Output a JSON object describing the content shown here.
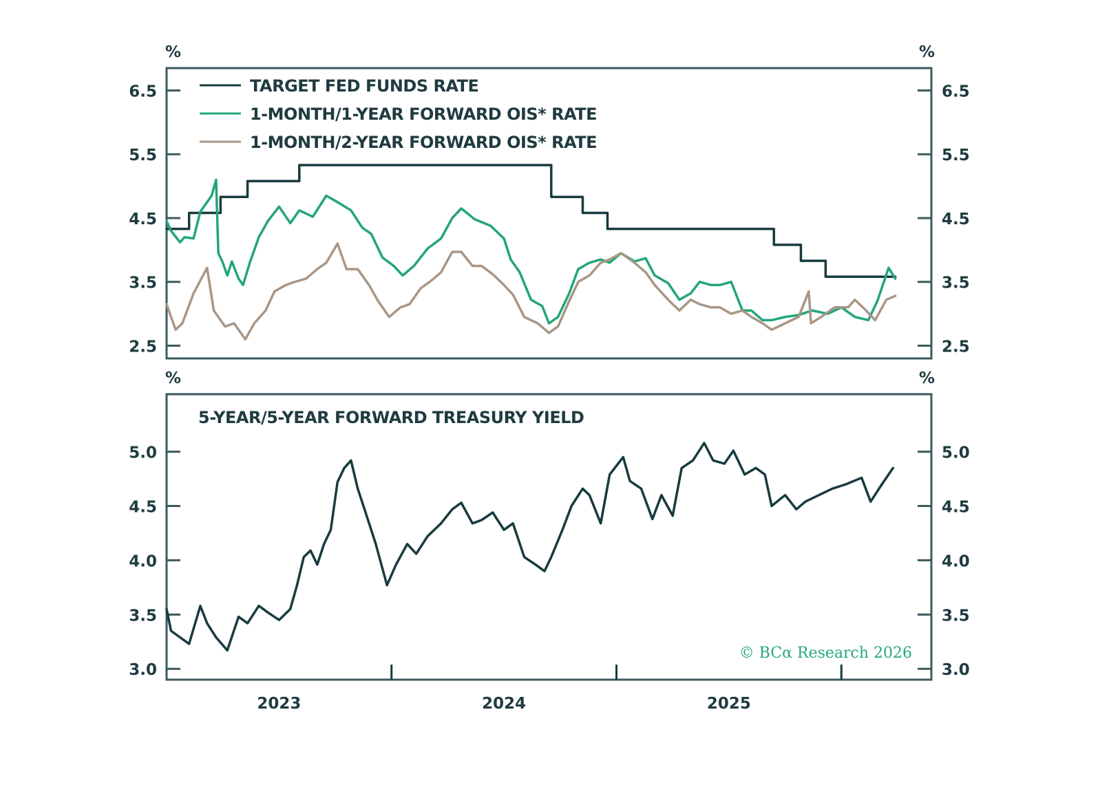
{
  "chart_data": [
    {
      "type": "line",
      "panel": "top",
      "title": "",
      "ylabel_left": "%",
      "ylabel_right": "%",
      "ylim": [
        2.3,
        6.85
      ],
      "yticks": [
        2.5,
        3.5,
        4.5,
        5.5,
        6.5
      ],
      "ytick_labels": [
        "2.5",
        "3.5",
        "4.5",
        "5.5",
        "6.5"
      ],
      "xlim": [
        2023.0,
        2026.4
      ],
      "legend_position": "top-left",
      "series": [
        {
          "name": "TARGET FED FUNDS RATE",
          "color": "#173b3f",
          "step": true,
          "points": [
            [
              2023.0,
              4.33
            ],
            [
              2023.1,
              4.33
            ],
            [
              2023.1,
              4.58
            ],
            [
              2023.24,
              4.58
            ],
            [
              2023.24,
              4.83
            ],
            [
              2023.36,
              4.83
            ],
            [
              2023.36,
              5.08
            ],
            [
              2023.59,
              5.08
            ],
            [
              2023.59,
              5.33
            ],
            [
              2024.71,
              5.33
            ],
            [
              2024.71,
              4.83
            ],
            [
              2024.85,
              4.83
            ],
            [
              2024.85,
              4.58
            ],
            [
              2024.96,
              4.58
            ],
            [
              2024.96,
              4.33
            ],
            [
              2025.7,
              4.33
            ],
            [
              2025.7,
              4.08
            ],
            [
              2025.82,
              4.08
            ],
            [
              2025.82,
              3.83
            ],
            [
              2025.93,
              3.83
            ],
            [
              2025.93,
              3.58
            ],
            [
              2026.24,
              3.58
            ]
          ]
        },
        {
          "name": "1-MONTH/1-YEAR FORWARD OIS* RATE",
          "color": "#22a57a",
          "step": false,
          "points": [
            [
              2023.0,
              4.45
            ],
            [
              2023.02,
              4.3
            ],
            [
              2023.06,
              4.12
            ],
            [
              2023.08,
              4.2
            ],
            [
              2023.12,
              4.18
            ],
            [
              2023.15,
              4.6
            ],
            [
              2023.2,
              4.85
            ],
            [
              2023.22,
              5.1
            ],
            [
              2023.23,
              3.95
            ],
            [
              2023.25,
              3.8
            ],
            [
              2023.27,
              3.6
            ],
            [
              2023.29,
              3.82
            ],
            [
              2023.32,
              3.55
            ],
            [
              2023.34,
              3.45
            ],
            [
              2023.37,
              3.8
            ],
            [
              2023.41,
              4.2
            ],
            [
              2023.45,
              4.45
            ],
            [
              2023.5,
              4.68
            ],
            [
              2023.55,
              4.42
            ],
            [
              2023.59,
              4.62
            ],
            [
              2023.65,
              4.52
            ],
            [
              2023.71,
              4.85
            ],
            [
              2023.76,
              4.75
            ],
            [
              2023.82,
              4.62
            ],
            [
              2023.87,
              4.35
            ],
            [
              2023.91,
              4.25
            ],
            [
              2023.96,
              3.88
            ],
            [
              2024.01,
              3.75
            ],
            [
              2024.05,
              3.6
            ],
            [
              2024.1,
              3.75
            ],
            [
              2024.16,
              4.02
            ],
            [
              2024.22,
              4.18
            ],
            [
              2024.27,
              4.5
            ],
            [
              2024.31,
              4.65
            ],
            [
              2024.37,
              4.48
            ],
            [
              2024.44,
              4.38
            ],
            [
              2024.5,
              4.18
            ],
            [
              2024.53,
              3.85
            ],
            [
              2024.57,
              3.65
            ],
            [
              2024.62,
              3.22
            ],
            [
              2024.67,
              3.12
            ],
            [
              2024.7,
              2.85
            ],
            [
              2024.74,
              2.95
            ],
            [
              2024.79,
              3.32
            ],
            [
              2024.83,
              3.7
            ],
            [
              2024.88,
              3.8
            ],
            [
              2024.93,
              3.85
            ],
            [
              2024.97,
              3.8
            ],
            [
              2025.02,
              3.95
            ],
            [
              2025.08,
              3.82
            ],
            [
              2025.13,
              3.87
            ],
            [
              2025.17,
              3.6
            ],
            [
              2025.23,
              3.48
            ],
            [
              2025.28,
              3.22
            ],
            [
              2025.33,
              3.32
            ],
            [
              2025.37,
              3.5
            ],
            [
              2025.42,
              3.45
            ],
            [
              2025.46,
              3.45
            ],
            [
              2025.51,
              3.5
            ],
            [
              2025.56,
              3.05
            ],
            [
              2025.6,
              3.05
            ],
            [
              2025.65,
              2.9
            ],
            [
              2025.69,
              2.9
            ],
            [
              2025.75,
              2.95
            ],
            [
              2025.81,
              2.98
            ],
            [
              2025.87,
              3.05
            ],
            [
              2025.94,
              3.0
            ],
            [
              2026.0,
              3.1
            ],
            [
              2026.06,
              2.95
            ],
            [
              2026.12,
              2.9
            ],
            [
              2026.16,
              3.2
            ],
            [
              2026.21,
              3.72
            ],
            [
              2026.24,
              3.55
            ]
          ]
        },
        {
          "name": "1-MONTH/2-YEAR FORWARD OIS* RATE",
          "color": "#a99686",
          "step": false,
          "points": [
            [
              2023.0,
              3.15
            ],
            [
              2023.04,
              2.75
            ],
            [
              2023.07,
              2.85
            ],
            [
              2023.12,
              3.32
            ],
            [
              2023.18,
              3.72
            ],
            [
              2023.21,
              3.05
            ],
            [
              2023.26,
              2.8
            ],
            [
              2023.3,
              2.85
            ],
            [
              2023.35,
              2.6
            ],
            [
              2023.39,
              2.85
            ],
            [
              2023.44,
              3.05
            ],
            [
              2023.48,
              3.35
            ],
            [
              2023.53,
              3.45
            ],
            [
              2023.57,
              3.5
            ],
            [
              2023.62,
              3.55
            ],
            [
              2023.67,
              3.7
            ],
            [
              2023.71,
              3.8
            ],
            [
              2023.76,
              4.1
            ],
            [
              2023.8,
              3.7
            ],
            [
              2023.85,
              3.7
            ],
            [
              2023.9,
              3.45
            ],
            [
              2023.94,
              3.2
            ],
            [
              2023.99,
              2.95
            ],
            [
              2024.04,
              3.1
            ],
            [
              2024.08,
              3.15
            ],
            [
              2024.13,
              3.4
            ],
            [
              2024.17,
              3.5
            ],
            [
              2024.22,
              3.65
            ],
            [
              2024.27,
              3.97
            ],
            [
              2024.31,
              3.97
            ],
            [
              2024.36,
              3.75
            ],
            [
              2024.4,
              3.75
            ],
            [
              2024.45,
              3.62
            ],
            [
              2024.5,
              3.45
            ],
            [
              2024.54,
              3.3
            ],
            [
              2024.59,
              2.95
            ],
            [
              2024.65,
              2.85
            ],
            [
              2024.7,
              2.7
            ],
            [
              2024.74,
              2.8
            ],
            [
              2024.79,
              3.2
            ],
            [
              2024.83,
              3.5
            ],
            [
              2024.88,
              3.6
            ],
            [
              2024.93,
              3.8
            ],
            [
              2024.97,
              3.85
            ],
            [
              2025.02,
              3.95
            ],
            [
              2025.08,
              3.8
            ],
            [
              2025.13,
              3.65
            ],
            [
              2025.17,
              3.45
            ],
            [
              2025.23,
              3.22
            ],
            [
              2025.28,
              3.05
            ],
            [
              2025.33,
              3.22
            ],
            [
              2025.37,
              3.15
            ],
            [
              2025.42,
              3.1
            ],
            [
              2025.46,
              3.1
            ],
            [
              2025.51,
              3.0
            ],
            [
              2025.56,
              3.05
            ],
            [
              2025.6,
              2.95
            ],
            [
              2025.65,
              2.85
            ],
            [
              2025.69,
              2.75
            ],
            [
              2025.75,
              2.85
            ],
            [
              2025.81,
              2.95
            ],
            [
              2025.855,
              3.35
            ],
            [
              2025.865,
              2.85
            ],
            [
              2025.91,
              2.95
            ],
            [
              2025.97,
              3.1
            ],
            [
              2026.03,
              3.1
            ],
            [
              2026.06,
              3.22
            ],
            [
              2026.11,
              3.05
            ],
            [
              2026.15,
              2.9
            ],
            [
              2026.2,
              3.22
            ],
            [
              2026.24,
              3.28
            ]
          ]
        }
      ]
    },
    {
      "type": "line",
      "panel": "bottom",
      "title": "5-YEAR/5-YEAR FORWARD TREASURY YIELD",
      "ylabel_left": "%",
      "ylabel_right": "%",
      "ylim": [
        2.9,
        5.53
      ],
      "yticks": [
        3.0,
        3.5,
        4.0,
        4.5,
        5.0
      ],
      "ytick_labels": [
        "3.0",
        "3.5",
        "4.0",
        "4.5",
        "5.0"
      ],
      "xlim": [
        2023.0,
        2026.4
      ],
      "xticks": [
        2024.0,
        2025.0,
        2026.0
      ],
      "xtick_labels": [
        {
          "label": "2023",
          "at": 2023.5
        },
        {
          "label": "2024",
          "at": 2024.5
        },
        {
          "label": "2025",
          "at": 2025.5
        }
      ],
      "series": [
        {
          "name": "5-YEAR/5-YEAR FORWARD TREASURY YIELD",
          "color": "#173b3f",
          "points": [
            [
              2023.0,
              3.55
            ],
            [
              2023.02,
              3.35
            ],
            [
              2023.06,
              3.29
            ],
            [
              2023.1,
              3.23
            ],
            [
              2023.15,
              3.58
            ],
            [
              2023.18,
              3.42
            ],
            [
              2023.22,
              3.29
            ],
            [
              2023.27,
              3.17
            ],
            [
              2023.32,
              3.48
            ],
            [
              2023.36,
              3.42
            ],
            [
              2023.41,
              3.58
            ],
            [
              2023.45,
              3.52
            ],
            [
              2023.5,
              3.45
            ],
            [
              2023.55,
              3.55
            ],
            [
              2023.58,
              3.77
            ],
            [
              2023.61,
              4.03
            ],
            [
              2023.64,
              4.09
            ],
            [
              2023.67,
              3.96
            ],
            [
              2023.7,
              4.15
            ],
            [
              2023.73,
              4.28
            ],
            [
              2023.76,
              4.72
            ],
            [
              2023.79,
              4.85
            ],
            [
              2023.82,
              4.92
            ],
            [
              2023.85,
              4.66
            ],
            [
              2023.88,
              4.47
            ],
            [
              2023.93,
              4.15
            ],
            [
              2023.98,
              3.77
            ],
            [
              2024.02,
              3.96
            ],
            [
              2024.07,
              4.15
            ],
            [
              2024.11,
              4.06
            ],
            [
              2024.16,
              4.22
            ],
            [
              2024.22,
              4.34
            ],
            [
              2024.27,
              4.47
            ],
            [
              2024.31,
              4.53
            ],
            [
              2024.36,
              4.34
            ],
            [
              2024.4,
              4.37
            ],
            [
              2024.45,
              4.44
            ],
            [
              2024.5,
              4.28
            ],
            [
              2024.54,
              4.34
            ],
            [
              2024.59,
              4.03
            ],
            [
              2024.64,
              3.96
            ],
            [
              2024.68,
              3.9
            ],
            [
              2024.71,
              4.03
            ],
            [
              2024.76,
              4.28
            ],
            [
              2024.8,
              4.5
            ],
            [
              2024.85,
              4.66
            ],
            [
              2024.88,
              4.6
            ],
            [
              2024.93,
              4.34
            ],
            [
              2024.97,
              4.79
            ],
            [
              2025.03,
              4.95
            ],
            [
              2025.06,
              4.73
            ],
            [
              2025.11,
              4.66
            ],
            [
              2025.16,
              4.38
            ],
            [
              2025.2,
              4.6
            ],
            [
              2025.25,
              4.41
            ],
            [
              2025.29,
              4.85
            ],
            [
              2025.34,
              4.92
            ],
            [
              2025.39,
              5.08
            ],
            [
              2025.43,
              4.92
            ],
            [
              2025.48,
              4.89
            ],
            [
              2025.52,
              5.01
            ],
            [
              2025.57,
              4.79
            ],
            [
              2025.62,
              4.85
            ],
            [
              2025.66,
              4.79
            ],
            [
              2025.69,
              4.5
            ],
            [
              2025.75,
              4.6
            ],
            [
              2025.8,
              4.47
            ],
            [
              2025.84,
              4.54
            ],
            [
              2025.9,
              4.6
            ],
            [
              2025.96,
              4.66
            ],
            [
              2026.02,
              4.7
            ],
            [
              2026.09,
              4.76
            ],
            [
              2026.13,
              4.54
            ],
            [
              2026.18,
              4.7
            ],
            [
              2026.23,
              4.85
            ]
          ]
        }
      ]
    }
  ],
  "credit": "© BCα Research 2026"
}
